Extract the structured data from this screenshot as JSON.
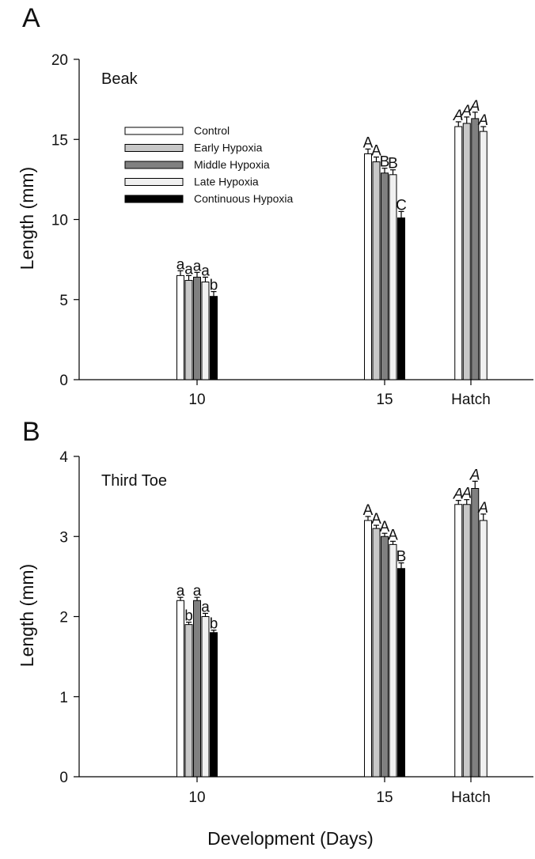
{
  "figure": {
    "xlabel": "Development (Days)"
  },
  "legend": {
    "entries": [
      "Control",
      "Early Hypoxia",
      "Middle Hypoxia",
      "Late Hypoxia",
      "Continuous Hypoxia"
    ]
  },
  "series_colors": [
    "#ffffff",
    "#c8c8c8",
    "#808080",
    "#f0f0f0",
    "#000000"
  ],
  "chart_data": [
    {
      "type": "bar",
      "panel_letter": "A",
      "title": "Beak",
      "ylabel": "Length (mm)",
      "ylim": [
        0,
        20
      ],
      "yticks": [
        0,
        5,
        10,
        15,
        20
      ],
      "categories": [
        "10",
        "15",
        "Hatch"
      ],
      "legend_position": "upper-left",
      "series": [
        {
          "name": "Control",
          "values": [
            6.5,
            14.1,
            15.8
          ],
          "errors": [
            0.3,
            0.3,
            0.3
          ],
          "labels": [
            "a",
            "A",
            "A"
          ]
        },
        {
          "name": "Early Hypoxia",
          "values": [
            6.2,
            13.6,
            16.0
          ],
          "errors": [
            0.3,
            0.3,
            0.4
          ],
          "labels": [
            "a",
            "A",
            "A"
          ]
        },
        {
          "name": "Middle Hypoxia",
          "values": [
            6.4,
            12.9,
            16.3
          ],
          "errors": [
            0.3,
            0.3,
            0.4
          ],
          "labels": [
            "a",
            "B",
            "A"
          ]
        },
        {
          "name": "Late Hypoxia",
          "values": [
            6.1,
            12.8,
            15.5
          ],
          "errors": [
            0.3,
            0.3,
            0.3
          ],
          "labels": [
            "a",
            "B",
            "A"
          ]
        },
        {
          "name": "Continuous Hypoxia",
          "values": [
            5.2,
            10.1,
            null
          ],
          "errors": [
            0.3,
            0.4,
            null
          ],
          "labels": [
            "b",
            "C",
            ""
          ]
        }
      ]
    },
    {
      "type": "bar",
      "panel_letter": "B",
      "title": "Third Toe",
      "ylabel": "Length (mm)",
      "ylim": [
        0,
        4
      ],
      "yticks": [
        0,
        1,
        2,
        3,
        4
      ],
      "categories": [
        "10",
        "15",
        "Hatch"
      ],
      "series": [
        {
          "name": "Control",
          "values": [
            2.2,
            3.2,
            3.4
          ],
          "errors": [
            0.04,
            0.05,
            0.05
          ],
          "labels": [
            "a",
            "A",
            "A"
          ]
        },
        {
          "name": "Early Hypoxia",
          "values": [
            1.9,
            3.1,
            3.4
          ],
          "errors": [
            0.03,
            0.04,
            0.06
          ],
          "labels": [
            "b",
            "A",
            "A"
          ]
        },
        {
          "name": "Middle Hypoxia",
          "values": [
            2.2,
            3.0,
            3.6
          ],
          "errors": [
            0.04,
            0.04,
            0.09
          ],
          "labels": [
            "a",
            "A",
            "A"
          ]
        },
        {
          "name": "Late Hypoxia",
          "values": [
            2.0,
            2.9,
            3.2
          ],
          "errors": [
            0.04,
            0.04,
            0.08
          ],
          "labels": [
            "a",
            "A",
            "A"
          ]
        },
        {
          "name": "Continuous Hypoxia",
          "values": [
            1.8,
            2.6,
            null
          ],
          "errors": [
            0.03,
            0.07,
            null
          ],
          "labels": [
            "b",
            "B",
            ""
          ]
        }
      ]
    }
  ]
}
